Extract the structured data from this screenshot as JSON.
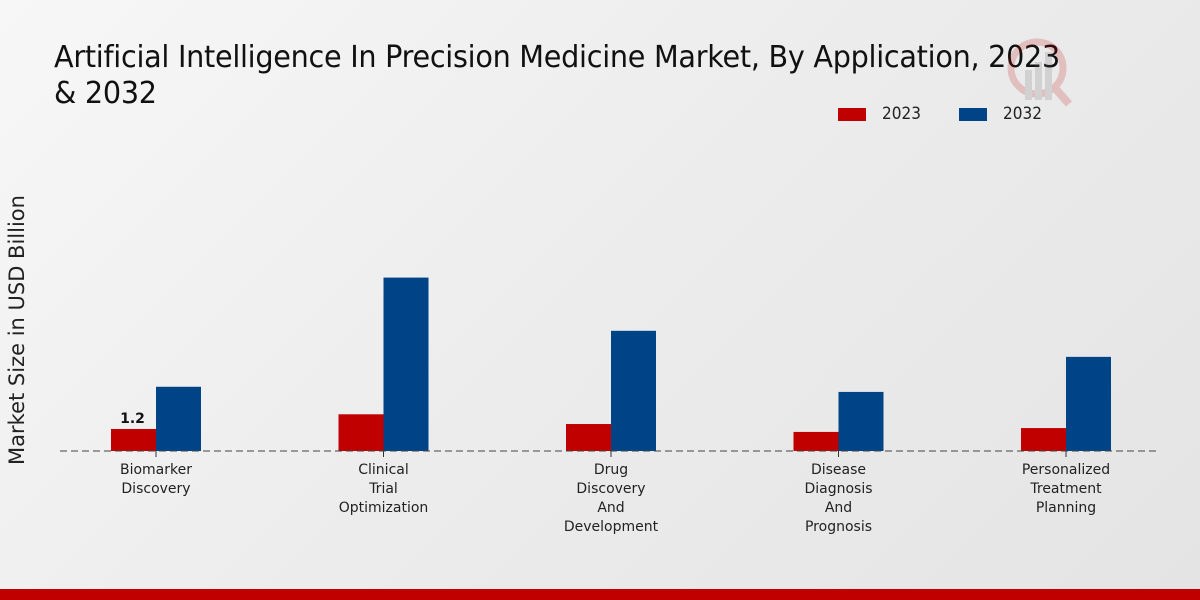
{
  "chart_data": {
    "type": "bar",
    "title": "Artificial Intelligence In Precision Medicine Market, By Application, 2023 & 2032",
    "title_lines": [
      "Artificial Intelligence In Precision Medicine Market, By Application, 2023",
      "& 2032"
    ],
    "xlabel": "",
    "ylabel": "Market Size in USD Billion",
    "ylim": [
      0,
      10
    ],
    "grid": false,
    "legend_position": "top-right",
    "categories": [
      [
        "Biomarker",
        "Discovery"
      ],
      [
        "Clinical",
        "Trial",
        "Optimization"
      ],
      [
        "Drug",
        "Discovery",
        "And",
        "Development"
      ],
      [
        "Disease",
        "Diagnosis",
        "And",
        "Prognosis"
      ],
      [
        "Personalized",
        "Treatment",
        "Planning"
      ]
    ],
    "series": [
      {
        "name": "2023",
        "color": "#c00000",
        "values": [
          1.2,
          2.0,
          1.47,
          1.04,
          1.25
        ]
      },
      {
        "name": "2032",
        "color": "#004488",
        "values": [
          3.5,
          9.45,
          6.55,
          3.22,
          5.13
        ]
      }
    ],
    "data_labels": [
      {
        "series": 0,
        "index": 0,
        "text": "1.2"
      }
    ]
  },
  "footer_color": "#c00000"
}
